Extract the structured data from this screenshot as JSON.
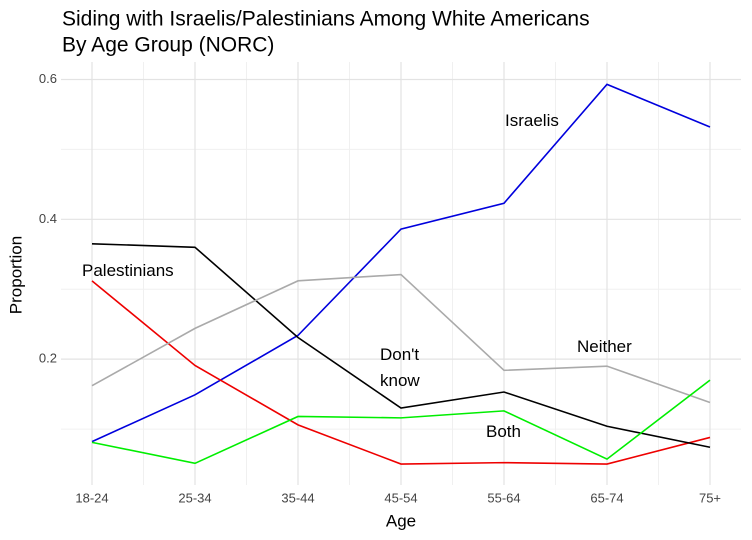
{
  "chart_data": {
    "type": "line",
    "title": [
      "Siding with Israelis/Palestinians Among White Americans",
      "By Age Group (NORC)"
    ],
    "x_label": "Age",
    "y_label": "Proportion",
    "categories": [
      "18-24",
      "25-34",
      "35-44",
      "45-54",
      "55-64",
      "65-74",
      "75+"
    ],
    "series": [
      {
        "name": "Israelis",
        "color": "#0000dd",
        "values": [
          0.082,
          0.149,
          0.234,
          0.386,
          0.423,
          0.593,
          0.532
        ]
      },
      {
        "name": "Palestinians",
        "color": "#ee0000",
        "values": [
          0.312,
          0.191,
          0.106,
          0.05,
          0.052,
          0.05,
          0.088
        ]
      },
      {
        "name": "Don't know",
        "color": "#000000",
        "values": [
          0.365,
          0.36,
          0.231,
          0.13,
          0.153,
          0.104,
          0.074
        ]
      },
      {
        "name": "Neither",
        "color": "#aaaaaa",
        "values": [
          0.162,
          0.244,
          0.312,
          0.321,
          0.184,
          0.19,
          0.138
        ]
      },
      {
        "name": "Both",
        "color": "#00ee00",
        "values": [
          0.081,
          0.051,
          0.118,
          0.116,
          0.126,
          0.057,
          0.17
        ]
      }
    ],
    "ylim": [
      0.02,
      0.625
    ],
    "yticks": [
      0.2,
      0.4,
      0.6
    ],
    "grid": true
  }
}
